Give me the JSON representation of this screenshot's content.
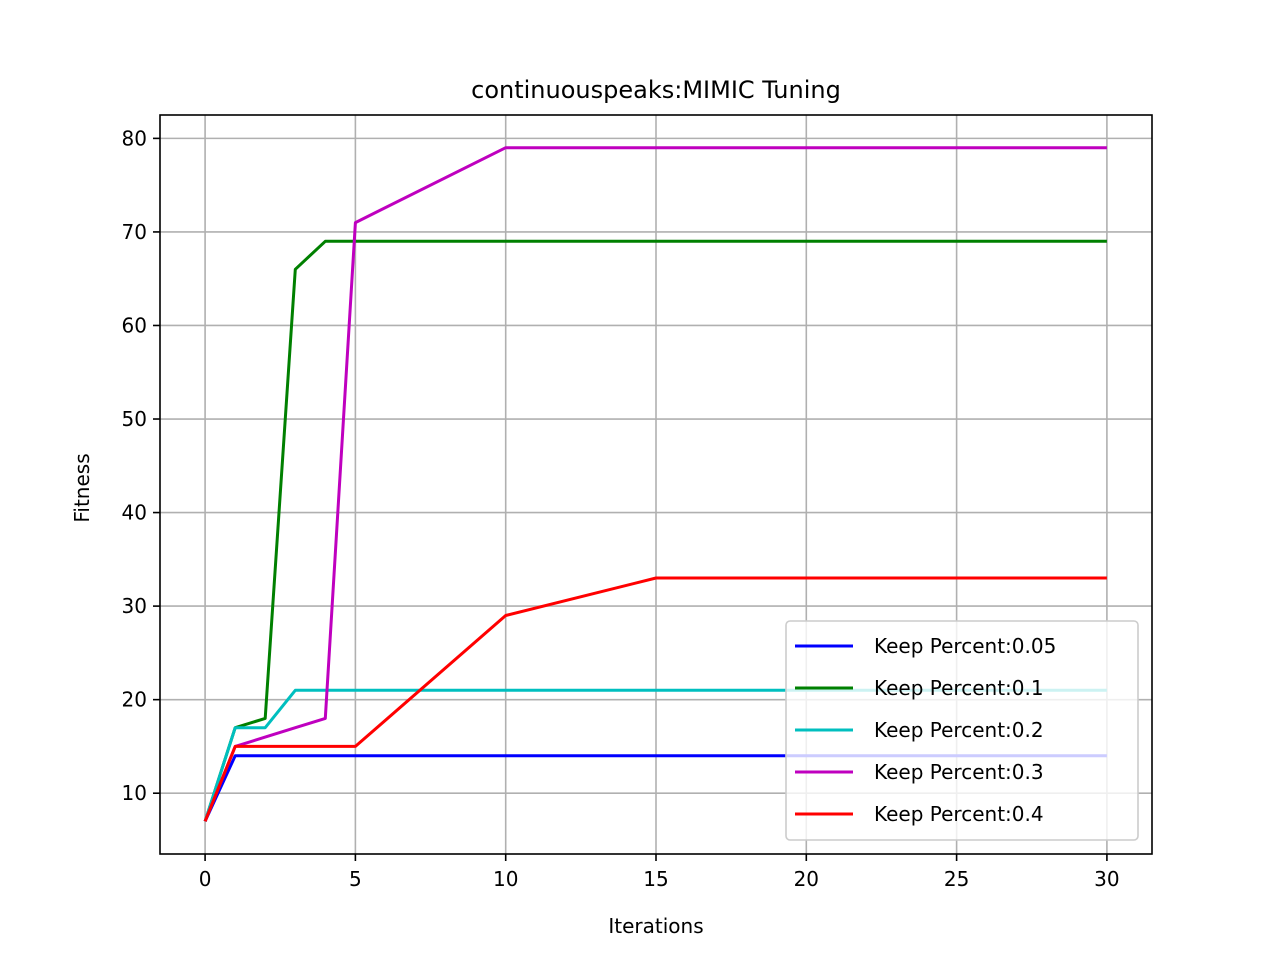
{
  "chart_data": {
    "type": "line",
    "title": "continuouspeaks:MIMIC Tuning",
    "xlabel": "Iterations",
    "ylabel": "Fitness",
    "xlim": [
      -1.5,
      31.5
    ],
    "ylim": [
      3.5,
      82.5
    ],
    "xticks": [
      0,
      5,
      10,
      15,
      20,
      25,
      30
    ],
    "yticks": [
      10,
      20,
      30,
      40,
      50,
      60,
      70,
      80
    ],
    "grid": true,
    "legend_position": "lower-right",
    "series": [
      {
        "name": "Keep Percent:0.05",
        "color": "#0000ff",
        "x": [
          0,
          1,
          2,
          3,
          4,
          5,
          10,
          15,
          20,
          25,
          30
        ],
        "y": [
          7,
          14,
          14,
          14,
          14,
          14,
          14,
          14,
          14,
          14,
          14
        ]
      },
      {
        "name": "Keep Percent:0.1",
        "color": "#008000",
        "x": [
          0,
          1,
          2,
          3,
          4,
          5,
          10,
          15,
          20,
          25,
          30
        ],
        "y": [
          7,
          17,
          18,
          66,
          69,
          69,
          69,
          69,
          69,
          69,
          69
        ]
      },
      {
        "name": "Keep Percent:0.2",
        "color": "#00bfbf",
        "x": [
          0,
          1,
          2,
          3,
          4,
          5,
          10,
          15,
          20,
          25,
          30
        ],
        "y": [
          7,
          17,
          17,
          21,
          21,
          21,
          21,
          21,
          21,
          21,
          21
        ]
      },
      {
        "name": "Keep Percent:0.3",
        "color": "#bf00bf",
        "x": [
          0,
          1,
          2,
          3,
          4,
          5,
          10,
          15,
          20,
          25,
          30
        ],
        "y": [
          7,
          15,
          16,
          17,
          18,
          71,
          79,
          79,
          79,
          79,
          79
        ]
      },
      {
        "name": "Keep Percent:0.4",
        "color": "#ff0000",
        "x": [
          0,
          1,
          2,
          3,
          4,
          5,
          10,
          15,
          20,
          25,
          30
        ],
        "y": [
          7,
          15,
          15,
          15,
          15,
          15,
          29,
          33,
          33,
          33,
          33
        ]
      }
    ]
  }
}
